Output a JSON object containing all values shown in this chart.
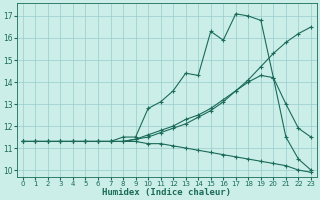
{
  "xlabel": "Humidex (Indice chaleur)",
  "xlim": [
    -0.5,
    23.5
  ],
  "ylim": [
    9.7,
    17.6
  ],
  "yticks": [
    10,
    11,
    12,
    13,
    14,
    15,
    16,
    17
  ],
  "xticks": [
    0,
    1,
    2,
    3,
    4,
    5,
    6,
    7,
    8,
    9,
    10,
    11,
    12,
    13,
    14,
    15,
    16,
    17,
    18,
    19,
    20,
    21,
    22,
    23
  ],
  "background_color": "#cceee8",
  "grid_color": "#99cccc",
  "line_color": "#1a6b5a",
  "lines": [
    {
      "x": [
        0,
        1,
        2,
        3,
        4,
        5,
        6,
        7,
        8,
        9,
        10,
        11,
        12,
        13,
        14,
        15,
        16,
        17,
        18,
        19,
        20,
        21,
        22,
        23
      ],
      "y": [
        11.3,
        11.3,
        11.3,
        11.3,
        11.3,
        11.3,
        11.3,
        11.3,
        11.5,
        11.5,
        12.8,
        13.1,
        13.6,
        14.4,
        14.3,
        16.3,
        15.9,
        17.1,
        17.0,
        16.8,
        14.2,
        11.5,
        10.5,
        10.0
      ]
    },
    {
      "x": [
        0,
        1,
        2,
        3,
        4,
        5,
        6,
        7,
        8,
        9,
        10,
        11,
        12,
        13,
        14,
        15,
        16,
        17,
        18,
        19,
        20,
        21,
        22,
        23
      ],
      "y": [
        11.3,
        11.3,
        11.3,
        11.3,
        11.3,
        11.3,
        11.3,
        11.3,
        11.3,
        11.4,
        11.6,
        11.8,
        12.0,
        12.3,
        12.5,
        12.8,
        13.2,
        13.6,
        14.0,
        14.3,
        14.2,
        13.0,
        11.9,
        11.5
      ]
    },
    {
      "x": [
        0,
        1,
        2,
        3,
        4,
        5,
        6,
        7,
        8,
        9,
        10,
        11,
        12,
        13,
        14,
        15,
        16,
        17,
        18,
        19,
        20,
        21,
        22,
        23
      ],
      "y": [
        11.3,
        11.3,
        11.3,
        11.3,
        11.3,
        11.3,
        11.3,
        11.3,
        11.3,
        11.4,
        11.5,
        11.7,
        11.9,
        12.1,
        12.4,
        12.7,
        13.1,
        13.6,
        14.1,
        14.7,
        15.3,
        15.8,
        16.2,
        16.5
      ]
    },
    {
      "x": [
        0,
        1,
        2,
        3,
        4,
        5,
        6,
        7,
        8,
        9,
        10,
        11,
        12,
        13,
        14,
        15,
        16,
        17,
        18,
        19,
        20,
        21,
        22,
        23
      ],
      "y": [
        11.3,
        11.3,
        11.3,
        11.3,
        11.3,
        11.3,
        11.3,
        11.3,
        11.3,
        11.3,
        11.2,
        11.2,
        11.1,
        11.0,
        10.9,
        10.8,
        10.7,
        10.6,
        10.5,
        10.4,
        10.3,
        10.2,
        10.0,
        9.9
      ]
    }
  ]
}
